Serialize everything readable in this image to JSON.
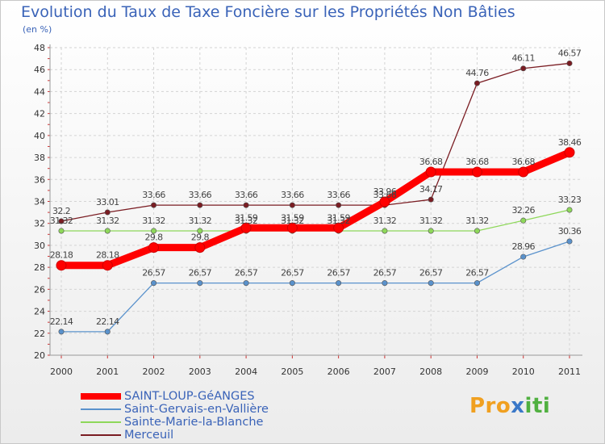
{
  "title": "Evolution du Taux de Taxe Foncière sur les Propriétés Non Bâties",
  "unit": "(en %)",
  "logo": {
    "p1": "Pro",
    "p2": "x",
    "p3": "iti"
  },
  "chart_data": {
    "type": "line",
    "title": "Evolution du Taux de Taxe Foncière sur les Propriétés Non Bâties",
    "ylabel": "(en %)",
    "xlabel": "",
    "ylim": [
      20,
      48
    ],
    "yticks": [
      "20",
      "22",
      "24",
      "26",
      "28",
      "30",
      "32",
      "34",
      "36",
      "38",
      "40",
      "42",
      "44",
      "46",
      "48"
    ],
    "categories": [
      "2000",
      "2001",
      "2002",
      "2003",
      "2004",
      "2005",
      "2006",
      "2007",
      "2008",
      "2009",
      "2010",
      "2011"
    ],
    "series": [
      {
        "name": "Merceuil",
        "color": "#7a1c22",
        "weight": "thin",
        "values": [
          32.2,
          33.01,
          33.66,
          33.66,
          33.66,
          33.66,
          33.66,
          33.66,
          34.17,
          44.76,
          46.11,
          46.57
        ],
        "labels": [
          "32.2",
          "33.01",
          "33.66",
          "33.66",
          "33.66",
          "33.66",
          "33.66",
          "33.66",
          "34.17",
          "44.76",
          "46.11",
          "46.57"
        ]
      },
      {
        "name": "Sainte-Marie-la-Blanche",
        "color": "#8ed85a",
        "weight": "thin",
        "values": [
          31.32,
          31.32,
          31.32,
          31.32,
          31.32,
          31.32,
          31.32,
          31.32,
          31.32,
          31.32,
          32.26,
          33.23
        ],
        "labels": [
          "31.32",
          "31.32",
          "31.32",
          "31.32",
          "31.32",
          "31.32",
          "31.32",
          "31.32",
          "31.32",
          "31.32",
          "32.26",
          "33.23"
        ]
      },
      {
        "name": "Saint-Gervais-en-Vallière",
        "color": "#5a92cc",
        "weight": "thin",
        "values": [
          22.14,
          22.14,
          26.57,
          26.57,
          26.57,
          26.57,
          26.57,
          26.57,
          26.57,
          26.57,
          28.96,
          30.36
        ],
        "labels": [
          "22.14",
          "22.14",
          "26.57",
          "26.57",
          "26.57",
          "26.57",
          "26.57",
          "26.57",
          "26.57",
          "26.57",
          "28.96",
          "30.36"
        ]
      },
      {
        "name": "SAINT-LOUP-GéANGES",
        "color": "#ff0000",
        "weight": "thick",
        "values": [
          28.18,
          28.18,
          29.8,
          29.8,
          31.59,
          31.59,
          31.59,
          33.96,
          36.68,
          36.68,
          36.68,
          38.46
        ],
        "labels": [
          "28.18",
          "28.18",
          "29.8",
          "29.8",
          "31.59",
          "31.59",
          "31.59",
          "33.96",
          "36.68",
          "36.68",
          "36.68",
          "38.46"
        ]
      }
    ],
    "legend": [
      {
        "name": "SAINT-LOUP-GéANGES",
        "color": "#ff0000",
        "weight": "thick"
      },
      {
        "name": "Saint-Gervais-en-Vallière",
        "color": "#5a92cc",
        "weight": "thin"
      },
      {
        "name": "Sainte-Marie-la-Blanche",
        "color": "#8ed85a",
        "weight": "thin"
      },
      {
        "name": "Merceuil",
        "color": "#7a1c22",
        "weight": "thin"
      }
    ]
  }
}
